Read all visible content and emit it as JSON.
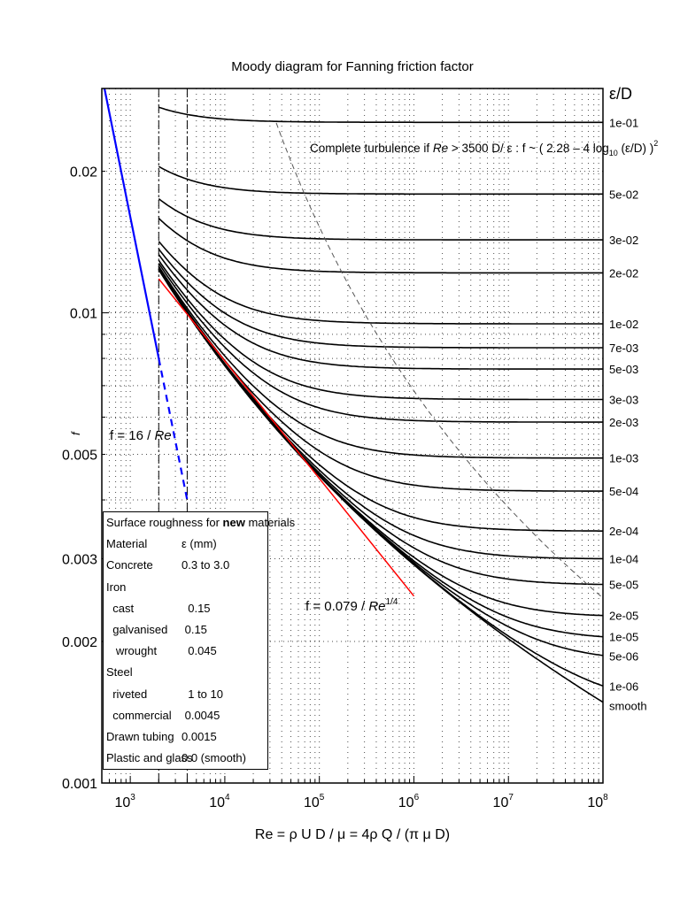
{
  "chart_data": {
    "type": "line",
    "title": "Moody diagram for Fanning friction factor",
    "xlabel": "Re = ρ U D / μ = 4ρ Q / (π μ D)",
    "ylabel": "f",
    "xscale": "log",
    "yscale": "log",
    "xlim": [
      500,
      100000000
    ],
    "ylim": [
      0.001,
      0.03
    ],
    "x_ticks": [
      {
        "v": 1000,
        "label": "10",
        "exp": "3"
      },
      {
        "v": 10000,
        "label": "10",
        "exp": "4"
      },
      {
        "v": 100000,
        "label": "10",
        "exp": "5"
      },
      {
        "v": 1000000,
        "label": "10",
        "exp": "6"
      },
      {
        "v": 10000000,
        "label": "10",
        "exp": "7"
      },
      {
        "v": 100000000,
        "label": "10",
        "exp": "8"
      }
    ],
    "y_ticks": [
      {
        "v": 0.001,
        "label": "0.001"
      },
      {
        "v": 0.002,
        "label": "0.002"
      },
      {
        "v": 0.003,
        "label": "0.003"
      },
      {
        "v": 0.005,
        "label": "0.005"
      },
      {
        "v": 0.01,
        "label": "0.01"
      },
      {
        "v": 0.02,
        "label": "0.02"
      }
    ],
    "grid": true,
    "roughness_header": "ε/D",
    "roughness_series": [
      {
        "name": "1e-01",
        "eps": 0.1
      },
      {
        "name": "5e-02",
        "eps": 0.05
      },
      {
        "name": "3e-02",
        "eps": 0.03
      },
      {
        "name": "2e-02",
        "eps": 0.02
      },
      {
        "name": "1e-02",
        "eps": 0.01
      },
      {
        "name": "7e-03",
        "eps": 0.007
      },
      {
        "name": "5e-03",
        "eps": 0.005
      },
      {
        "name": "3e-03",
        "eps": 0.003
      },
      {
        "name": "2e-03",
        "eps": 0.002
      },
      {
        "name": "1e-03",
        "eps": 0.001
      },
      {
        "name": "5e-04",
        "eps": 0.0005
      },
      {
        "name": "2e-04",
        "eps": 0.0002
      },
      {
        "name": "1e-04",
        "eps": 0.0001
      },
      {
        "name": "5e-05",
        "eps": 5e-05
      },
      {
        "name": "2e-05",
        "eps": 2e-05
      },
      {
        "name": "1e-05",
        "eps": 1e-05
      },
      {
        "name": "5e-06",
        "eps": 5e-06
      },
      {
        "name": "1e-06",
        "eps": 1e-06
      },
      {
        "name": "smooth",
        "eps": 0
      }
    ],
    "turbulent_re_range": [
      2000,
      100000000
    ],
    "laminar": {
      "label_prefix": "f = 16 / ",
      "label_var": "Re",
      "solid_range": [
        500,
        2000
      ],
      "dashed_range": [
        2000,
        4000
      ],
      "color": "#0000ff"
    },
    "blasius": {
      "label_prefix": "f = 0.079 / ",
      "label_var": "Re",
      "label_exp": "1/4",
      "range": [
        2000,
        1000000
      ],
      "color": "#ff0000"
    },
    "transition_lines": [
      2000,
      4000
    ],
    "complete_turbulence_note": {
      "a": "Complete turbulence if ",
      "b": "Re",
      "c": " > 3500 D/ ε :  f ~ ( 2.28 – 4 log",
      "sub": "10",
      "d": " (ε/D) )",
      "sup": "2"
    }
  },
  "legend": {
    "title_a": "Surface roughness for ",
    "title_b": "new",
    "title_c": " materials",
    "rows": [
      {
        "m": "Material",
        "v": "ε (mm)"
      },
      {
        "m": "Concrete",
        "v": "0.3 to 3.0"
      },
      {
        "m": "Iron",
        "v": ""
      },
      {
        "m": "  cast",
        "v": "  0.15"
      },
      {
        "m": "  galvanised",
        "v": " 0.15"
      },
      {
        "m": "   wrought",
        "v": "  0.045"
      },
      {
        "m": "Steel",
        "v": ""
      },
      {
        "m": "  riveted",
        "v": "  1 to 10"
      },
      {
        "m": "  commercial",
        "v": " 0.0045"
      },
      {
        "m": "Drawn tubing",
        "v": "0.0015"
      },
      {
        "m": "Plastic and glass",
        "v": "0.0 (smooth)"
      }
    ]
  }
}
